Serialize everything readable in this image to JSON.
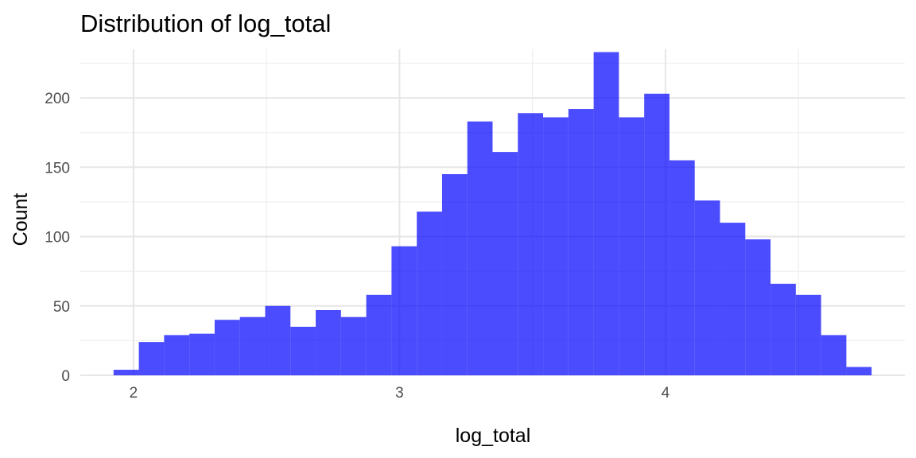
{
  "chart_data": {
    "type": "bar",
    "title": "Distribution of log_total",
    "xlabel": "log_total",
    "ylabel": "Count",
    "bar_color": "#0000ff",
    "bar_opacity": 0.7,
    "xlim": [
      1.8,
      4.9
    ],
    "ylim": [
      0,
      235
    ],
    "x_ticks": [
      2,
      3,
      4
    ],
    "x_tick_labels": [
      "2",
      "3",
      "4"
    ],
    "y_ticks": [
      0,
      50,
      100,
      150,
      200
    ],
    "y_tick_labels": [
      "0",
      "50",
      "100",
      "150",
      "200"
    ],
    "bin_width": 0.095,
    "bin_starts": [
      1.925,
      2.02,
      2.115,
      2.21,
      2.305,
      2.4,
      2.495,
      2.59,
      2.685,
      2.78,
      2.875,
      2.97,
      3.065,
      3.16,
      3.255,
      3.35,
      3.445,
      3.54,
      3.635,
      3.73,
      3.825,
      3.92,
      4.015,
      4.11,
      4.205,
      4.3,
      4.395,
      4.49,
      4.585,
      4.68
    ],
    "counts": [
      4,
      24,
      29,
      30,
      40,
      42,
      50,
      35,
      47,
      42,
      58,
      93,
      118,
      145,
      183,
      161,
      189,
      186,
      192,
      233,
      186,
      203,
      155,
      126,
      110,
      98,
      66,
      58,
      29,
      6
    ],
    "grid": true
  }
}
